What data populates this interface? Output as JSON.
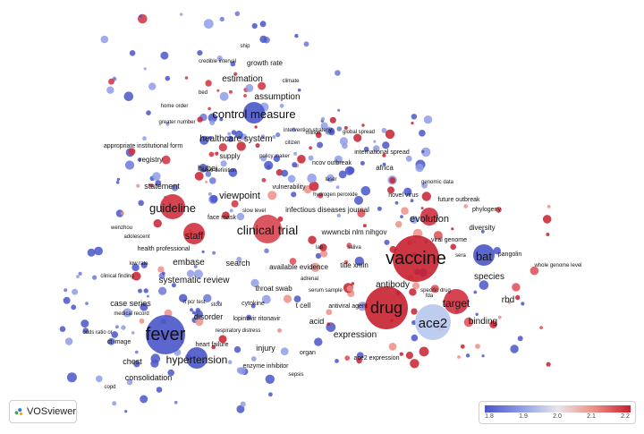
{
  "app": {
    "name": "VOSviewer"
  },
  "legend": {
    "ticks": [
      "1.8",
      "1.9",
      "2.0",
      "2.1",
      "2.2"
    ],
    "colors": [
      "#4a56c9",
      "#8e9ce6",
      "#e8e6ea",
      "#ec8f86",
      "#c8202f"
    ]
  },
  "labels": [
    {
      "key": "fever",
      "text": "fever",
      "size": 20,
      "color": "blue"
    },
    {
      "key": "vaccine",
      "text": "vaccine",
      "size": 20,
      "color": "red"
    },
    {
      "key": "drug",
      "text": "drug",
      "size": 18,
      "color": "red"
    },
    {
      "key": "ace2",
      "text": "ace2",
      "size": 15,
      "color": "lightblue"
    },
    {
      "key": "clinical_trial",
      "text": "clinical trial",
      "size": 14,
      "color": "red"
    },
    {
      "key": "guideline",
      "text": "guideline",
      "size": 13,
      "color": "red"
    },
    {
      "key": "control_measure",
      "text": "control measure",
      "size": 13,
      "color": "blue"
    },
    {
      "key": "bat",
      "text": "bat",
      "size": 13,
      "color": "blue"
    },
    {
      "key": "target",
      "text": "target",
      "size": 12,
      "color": "red"
    },
    {
      "key": "hypertension",
      "text": "hypertension",
      "size": 12,
      "color": "blue"
    },
    {
      "key": "staff",
      "text": "staff",
      "size": 11,
      "color": "red"
    },
    {
      "key": "viewpoint",
      "text": "viewpoint",
      "size": 11,
      "color": "blue"
    },
    {
      "key": "evolution",
      "text": "evolution",
      "size": 11,
      "color": "red"
    },
    {
      "key": "antibody",
      "text": "antibody",
      "size": 10,
      "color": "red"
    },
    {
      "key": "expression",
      "text": "expression",
      "size": 10,
      "color": "red"
    },
    {
      "key": "binding",
      "text": "binding",
      "size": 10,
      "color": "red"
    },
    {
      "key": "species",
      "text": "species",
      "size": 10,
      "color": "red"
    },
    {
      "key": "rbd",
      "text": "rbd",
      "size": 10,
      "color": "red"
    },
    {
      "key": "estimation",
      "text": "estimation",
      "size": 10,
      "color": "blue"
    },
    {
      "key": "assumption",
      "text": "assumption",
      "size": 10,
      "color": "blue"
    },
    {
      "key": "healthcare_system",
      "text": "healthcare system",
      "size": 10,
      "color": "blue"
    },
    {
      "key": "embase",
      "text": "embase",
      "size": 10,
      "color": "blue"
    },
    {
      "key": "systematic_review",
      "text": "systematic review",
      "size": 10,
      "color": "blue"
    },
    {
      "key": "search",
      "text": "search",
      "size": 9,
      "color": "blue"
    },
    {
      "key": "statement",
      "text": "statement",
      "size": 9,
      "color": "red"
    },
    {
      "key": "hubei",
      "text": "hubei",
      "size": 9,
      "color": "blue"
    },
    {
      "key": "disorder",
      "text": "disorder",
      "size": 9,
      "color": "blue"
    },
    {
      "key": "case_series",
      "text": "case series",
      "size": 9,
      "color": "blue"
    },
    {
      "key": "chest",
      "text": "chest",
      "size": 9,
      "color": "blue"
    },
    {
      "key": "consolidation",
      "text": "consolidation",
      "size": 9,
      "color": "blue"
    },
    {
      "key": "injury",
      "text": "injury",
      "size": 9,
      "color": "blue"
    },
    {
      "key": "acid",
      "text": "acid",
      "size": 9,
      "color": "red"
    },
    {
      "key": "supply",
      "text": "supply",
      "size": 8,
      "color": "blue"
    },
    {
      "key": "registry",
      "text": "registry",
      "size": 8,
      "color": "red"
    },
    {
      "key": "africa",
      "text": "africa",
      "size": 8,
      "color": "red"
    },
    {
      "key": "growth_rate",
      "text": "growth rate",
      "size": 8,
      "color": "blue"
    },
    {
      "key": "wwwncbi",
      "text": "wwwncbi nlm nihgov",
      "size": 8,
      "color": "red"
    },
    {
      "key": "title_xmln",
      "text": "title xmln",
      "size": 8,
      "color": "blue"
    },
    {
      "key": "throat_swab",
      "text": "throat swab",
      "size": 8,
      "color": "blue"
    },
    {
      "key": "tcell",
      "text": "t cell",
      "size": 8,
      "color": "red"
    },
    {
      "key": "diversity",
      "text": "diversity",
      "size": 8,
      "color": "blue"
    },
    {
      "key": "infectious_diseases_journal",
      "text": "infectious diseases journal",
      "size": 8,
      "color": "red"
    },
    {
      "key": "available_evidence",
      "text": "available evidence",
      "size": 8,
      "color": "blue"
    },
    {
      "key": "face_mask",
      "text": "face mask",
      "size": 7,
      "color": "red"
    },
    {
      "key": "cytokine",
      "text": "cytokine",
      "size": 7,
      "color": "blue"
    },
    {
      "key": "lopinavir",
      "text": "lopinavir ritonavir",
      "size": 7,
      "color": "blue"
    },
    {
      "key": "ct_image",
      "text": "ct image",
      "size": 7,
      "color": "blue"
    },
    {
      "key": "heart_failure",
      "text": "heart failure",
      "size": 7,
      "color": "blue"
    },
    {
      "key": "enzyme_inhibitor",
      "text": "enzyme inhibitor",
      "size": 7,
      "color": "blue"
    },
    {
      "key": "organ",
      "text": "organ",
      "size": 7,
      "color": "blue"
    },
    {
      "key": "antiviral_agent",
      "text": "antiviral agent",
      "size": 7,
      "color": "red"
    },
    {
      "key": "ace2_expression",
      "text": "ace2 expression",
      "size": 7,
      "color": "red"
    },
    {
      "key": "viral_genome",
      "text": "viral genome",
      "size": 7,
      "color": "blue"
    },
    {
      "key": "phylogeny",
      "text": "phylogeny",
      "size": 7,
      "color": "red"
    },
    {
      "key": "future_outbreak",
      "text": "future outbreak",
      "size": 7,
      "color": "red"
    },
    {
      "key": "novel_virus",
      "text": "novel virus",
      "size": 7,
      "color": "red"
    },
    {
      "key": "genomic_data",
      "text": "genomic data",
      "size": 6,
      "color": "red"
    },
    {
      "key": "pangolin",
      "text": "pangolin",
      "size": 7,
      "color": "blue"
    },
    {
      "key": "whole_genome_level",
      "text": "whole genome level",
      "size": 6,
      "color": "blue"
    },
    {
      "key": "specific_drug",
      "text": "specific drug",
      "size": 6,
      "color": "red"
    },
    {
      "key": "sera",
      "text": "sera",
      "size": 6,
      "color": "red"
    },
    {
      "key": "fda",
      "text": "fda",
      "size": 6,
      "color": "red"
    },
    {
      "key": "saliva",
      "text": "saliva",
      "size": 6,
      "color": "blue"
    },
    {
      "key": "lab",
      "text": "lab",
      "size": 6,
      "color": "blue"
    },
    {
      "key": "serum_sample",
      "text": "serum sample",
      "size": 6,
      "color": "red"
    },
    {
      "key": "adrenal",
      "text": "adrenal",
      "size": 6,
      "color": "blue"
    },
    {
      "key": "hydrogen_peroxide",
      "text": "hydrogen peroxide",
      "size": 6,
      "color": "red"
    },
    {
      "key": "vulnerability",
      "text": "vulnerability",
      "size": 7,
      "color": "blue"
    },
    {
      "key": "slow_level",
      "text": "slow level",
      "size": 6,
      "color": "blue"
    },
    {
      "key": "laser",
      "text": "laser",
      "size": 6,
      "color": "red"
    },
    {
      "key": "international_spread",
      "text": "international spread",
      "size": 7,
      "color": "red"
    },
    {
      "key": "ncov_outbreak",
      "text": "ncov outbreak",
      "size": 7,
      "color": "blue"
    },
    {
      "key": "million",
      "text": "million",
      "size": 6,
      "color": "blue"
    },
    {
      "key": "citizen",
      "text": "citizen",
      "size": 6,
      "color": "blue"
    },
    {
      "key": "policy_maker",
      "text": "policy maker",
      "size": 6,
      "color": "blue"
    },
    {
      "key": "case_definition",
      "text": "case definition",
      "size": 6,
      "color": "blue"
    },
    {
      "key": "intervention_strategy",
      "text": "intervention strategy",
      "size": 6,
      "color": "blue"
    },
    {
      "key": "global_spread",
      "text": "global spread",
      "size": 6,
      "color": "blue"
    },
    {
      "key": "climate",
      "text": "climate",
      "size": 6,
      "color": "blue"
    },
    {
      "key": "bed",
      "text": "bed",
      "size": 6,
      "color": "blue"
    },
    {
      "key": "credible_interval",
      "text": "credible interval",
      "size": 6,
      "color": "blue"
    },
    {
      "key": "ship",
      "text": "ship",
      "size": 6,
      "color": "blue"
    },
    {
      "key": "home_order",
      "text": "home order",
      "size": 6,
      "color": "blue"
    },
    {
      "key": "greater_number",
      "text": "greater number",
      "size": 6,
      "color": "blue"
    },
    {
      "key": "appropriate_institutional_form",
      "text": "appropriate institutional form",
      "size": 7,
      "color": "red"
    },
    {
      "key": "wenzhou",
      "text": "wenzhou",
      "size": 6,
      "color": "blue"
    },
    {
      "key": "adolescent",
      "text": "adolescent",
      "size": 6,
      "color": "blue"
    },
    {
      "key": "health_professional",
      "text": "health professional",
      "size": 7,
      "color": "blue"
    },
    {
      "key": "low_rate",
      "text": "low rate",
      "size": 6,
      "color": "blue"
    },
    {
      "key": "clinical_finding",
      "text": "clinical finding",
      "size": 6,
      "color": "blue"
    },
    {
      "key": "medical_record",
      "text": "medical record",
      "size": 6,
      "color": "blue"
    },
    {
      "key": "rt_pcr_test",
      "text": "rt pcr test",
      "size": 6,
      "color": "blue"
    },
    {
      "key": "stool",
      "text": "stool",
      "size": 6,
      "color": "blue"
    },
    {
      "key": "odds_ratio",
      "text": "odds ratio or",
      "size": 6,
      "color": "blue"
    },
    {
      "key": "respiratory_distress",
      "text": "respiratory distress",
      "size": 6,
      "color": "blue"
    },
    {
      "key": "copd",
      "text": "copd",
      "size": 6,
      "color": "blue"
    },
    {
      "key": "sepsis",
      "text": "sepsis",
      "size": 6,
      "color": "blue"
    }
  ]
}
